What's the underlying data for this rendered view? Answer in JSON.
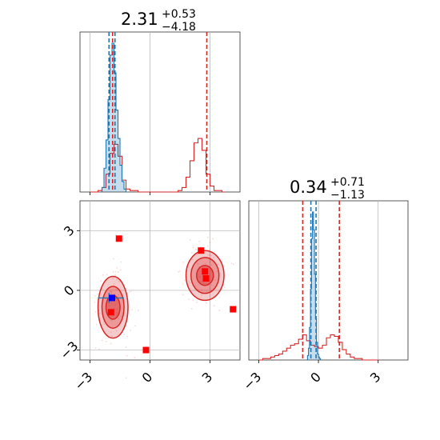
{
  "chart_data": {
    "type": "corner",
    "param_titles": [
      {
        "value": "2.31",
        "plus": "+0.53",
        "minus": "−4.18"
      },
      {
        "value": "0.34",
        "plus": "+0.71",
        "minus": "−1.13"
      }
    ],
    "axis_range": [
      -3.5,
      4.5
    ],
    "ticks": [
      -3,
      0,
      3
    ],
    "tick_labels": [
      "−3",
      "0",
      "3"
    ],
    "grid": true,
    "colors": {
      "blue": "#1f77b4",
      "red": "#d62728",
      "marker": "#ff0000",
      "truth": "#0000ff"
    },
    "marg1": {
      "blue_hist": {
        "edges": [
          -2.5,
          -2.4,
          -2.3,
          -2.2,
          -2.1,
          -2.0,
          -1.9,
          -1.8,
          -1.7,
          -1.6,
          -1.5,
          -1.4,
          -1.3,
          -1.2,
          -1.1
        ],
        "counts": [
          0,
          0.03,
          0.16,
          0.35,
          0.62,
          0.92,
          1.0,
          0.8,
          0.55,
          0.36,
          0.18,
          0.07,
          0.02,
          0
        ]
      },
      "red_hist": {
        "edges": [
          -3.0,
          -2.8,
          -2.6,
          -2.4,
          -2.2,
          -2.0,
          -1.8,
          -1.6,
          -1.4,
          -1.2,
          -1.0,
          -0.8,
          -0.6,
          -0.4,
          -0.2,
          0.0,
          0.2,
          0.4,
          0.6,
          0.8,
          1.0,
          1.2,
          1.4,
          1.6,
          1.8,
          2.0,
          2.2,
          2.4,
          2.6,
          2.8,
          3.0,
          3.2,
          3.4,
          3.6,
          3.8
        ],
        "counts": [
          0,
          0,
          0.01,
          0.03,
          0.12,
          0.26,
          0.32,
          0.24,
          0.08,
          0.02,
          0.01,
          0.01,
          0,
          0,
          0,
          0,
          0,
          0,
          0,
          0,
          0,
          0,
          0.01,
          0.03,
          0.1,
          0.21,
          0.33,
          0.36,
          0.28,
          0.12,
          0.04,
          0.01,
          0.01,
          0
        ]
      },
      "blue_lines": [
        -2.05,
        -1.75
      ],
      "red_lines": [
        -1.87,
        2.84
      ]
    },
    "marg2": {
      "blue_hist": {
        "edges": [
          -0.55,
          -0.5,
          -0.45,
          -0.4,
          -0.35,
          -0.3,
          -0.25,
          -0.2,
          -0.15,
          -0.1,
          -0.05,
          0.0,
          0.05,
          0.1
        ],
        "counts": [
          0.03,
          0.08,
          0.22,
          0.48,
          0.82,
          1.0,
          0.88,
          0.58,
          0.28,
          0.12,
          0.04,
          0.02,
          0.01
        ]
      },
      "red_hist": {
        "edges": [
          -3.0,
          -2.8,
          -2.6,
          -2.4,
          -2.2,
          -2.0,
          -1.8,
          -1.6,
          -1.4,
          -1.2,
          -1.0,
          -0.8,
          -0.6,
          -0.4,
          -0.2,
          0.0,
          0.2,
          0.4,
          0.6,
          0.8,
          1.0,
          1.2,
          1.4,
          1.6,
          1.8,
          2.0,
          2.2,
          2.4,
          2.6,
          2.8,
          3.0
        ],
        "counts": [
          0,
          0.01,
          0.01,
          0.02,
          0.03,
          0.04,
          0.06,
          0.08,
          0.1,
          0.11,
          0.14,
          0.17,
          0.13,
          0.1,
          0.09,
          0.08,
          0.1,
          0.15,
          0.17,
          0.16,
          0.12,
          0.07,
          0.04,
          0.02,
          0.01,
          0.01,
          0,
          0,
          0,
          0
        ]
      },
      "blue_lines": [
        -0.38,
        -0.12
      ],
      "red_lines": [
        -0.79,
        1.05
      ]
    },
    "joint": {
      "blobs": [
        {
          "cx": -1.85,
          "cy": -0.85,
          "rx": [
            0.75,
            0.55,
            0.35
          ],
          "ry": [
            1.55,
            1.05,
            0.6
          ]
        },
        {
          "cx": 2.75,
          "cy": 0.75,
          "rx": [
            0.95,
            0.7,
            0.42
          ],
          "ry": [
            1.25,
            0.9,
            0.5
          ]
        }
      ],
      "red_squares": [
        {
          "x": -1.55,
          "y": 2.6
        },
        {
          "x": 2.55,
          "y": 2.0
        },
        {
          "x": -0.2,
          "y": -3.0
        },
        {
          "x": 4.15,
          "y": -0.95
        },
        {
          "x": -1.95,
          "y": -1.1
        },
        {
          "x": 2.75,
          "y": 0.95
        },
        {
          "x": 2.8,
          "y": 0.6
        }
      ],
      "blue_square": {
        "x": -1.9,
        "y": -0.38
      },
      "red_crosshair": {
        "x": -2.05,
        "y": -0.38
      }
    }
  }
}
